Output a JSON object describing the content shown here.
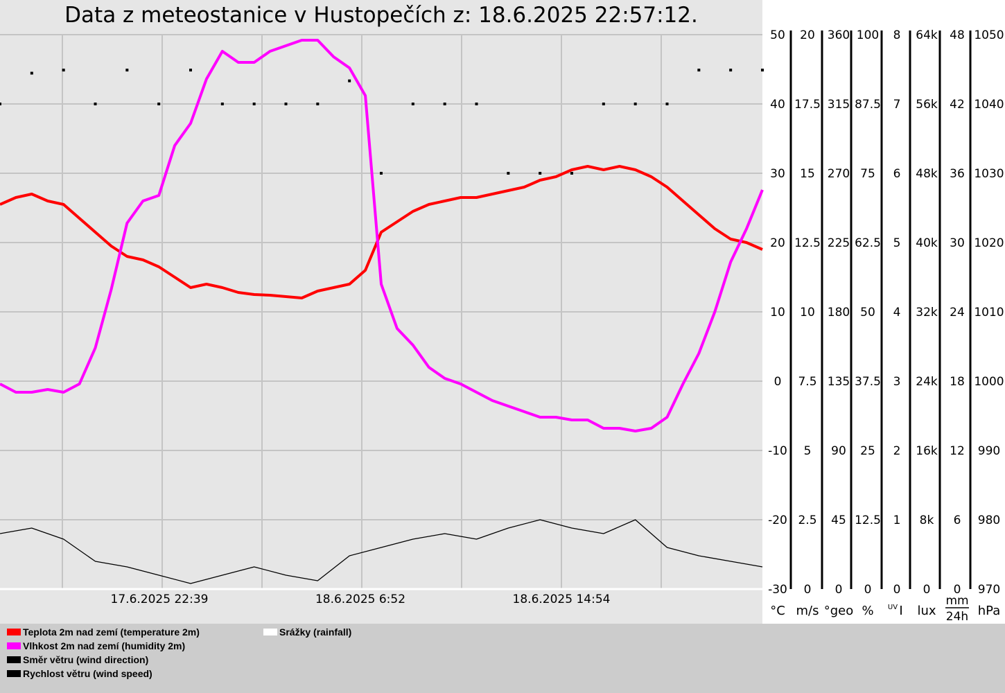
{
  "title": "Data z meteostanice v Hustopečích z: 18.6.2025 22:57:12.",
  "chart_data": {
    "type": "line",
    "time_labels": [
      "17.6.2025 22:39",
      "18.6.2025 6:52",
      "18.6.2025 14:54"
    ],
    "axes": [
      {
        "id": "temp",
        "unit": "°C",
        "ticks": [
          "50",
          "40",
          "30",
          "20",
          "10",
          "0",
          "-10",
          "-20",
          "-30"
        ]
      },
      {
        "id": "wind-speed",
        "unit": "m/s",
        "ticks": [
          "20",
          "17.5",
          "15",
          "12.5",
          "10",
          "7.5",
          "5",
          "2.5",
          "0"
        ]
      },
      {
        "id": "wind-dir",
        "unit": "°geo",
        "ticks": [
          "360",
          "315",
          "270",
          "225",
          "180",
          "135",
          "90",
          "45",
          "0"
        ]
      },
      {
        "id": "humidity",
        "unit": "%",
        "ticks": [
          "100",
          "87.5",
          "75",
          "62.5",
          "50",
          "37.5",
          "25",
          "12.5",
          "0"
        ]
      },
      {
        "id": "uv",
        "unit": "UVI",
        "unit_sup": "UV",
        "unit_main": "I",
        "ticks": [
          "8",
          "7",
          "6",
          "5",
          "4",
          "3",
          "2",
          "1",
          "0"
        ]
      },
      {
        "id": "lux",
        "unit": "lux",
        "ticks": [
          "64k",
          "56k",
          "48k",
          "40k",
          "32k",
          "24k",
          "16k",
          "8k",
          "0"
        ]
      },
      {
        "id": "rain",
        "unit": "mm/24h",
        "unit_top": "mm",
        "unit_bottom": "24h",
        "ticks": [
          "48",
          "42",
          "36",
          "30",
          "24",
          "18",
          "12",
          "6",
          "0"
        ]
      },
      {
        "id": "pressure",
        "unit": "hPa",
        "ticks": [
          "1050",
          "1040",
          "1030",
          "1020",
          "1010",
          "1000",
          "990",
          "980",
          "970"
        ]
      }
    ],
    "series": [
      {
        "name": "Teplota 2m nad zemí (temperature 2m)",
        "axis": "temp",
        "color": "#ff0000",
        "x": [
          0,
          0.5,
          1,
          1.5,
          2,
          2.5,
          3,
          3.5,
          4,
          4.5,
          5,
          5.5,
          6,
          6.5,
          7,
          7.5,
          8,
          8.5,
          9,
          9.5,
          10,
          10.5,
          11,
          11.5,
          12,
          12.5,
          13,
          13.5,
          14,
          14.5,
          15,
          15.5,
          16,
          16.5,
          17,
          17.5,
          18,
          18.5,
          19,
          19.5,
          20,
          20.5,
          21,
          21.5,
          22,
          22.5,
          23,
          23.5,
          24
        ],
        "y": [
          25.5,
          26.5,
          27,
          26,
          25.5,
          23.5,
          21.5,
          19.5,
          18,
          17.5,
          16.5,
          15,
          13.5,
          14,
          13.5,
          12.8,
          12.5,
          12.4,
          12.2,
          12,
          13,
          13.5,
          14,
          16,
          21.5,
          23,
          24.5,
          25.5,
          26,
          26.5,
          26.5,
          27,
          27.5,
          28,
          29,
          29.5,
          30.5,
          31,
          30.5,
          31,
          30.5,
          29.5,
          28,
          26,
          24,
          22,
          20.5,
          20,
          19
        ]
      },
      {
        "name": "Vlhkost 2m nad zemí (humidity 2m)",
        "axis": "humidity",
        "color": "#ff00ff",
        "x": [
          0,
          0.5,
          1,
          1.5,
          2,
          2.5,
          3,
          3.5,
          4,
          4.5,
          5,
          5.5,
          6,
          6.5,
          7,
          7.5,
          8,
          8.5,
          9,
          9.5,
          10,
          10.5,
          11,
          11.5,
          12,
          12.5,
          13,
          13.5,
          14,
          14.5,
          15,
          15.5,
          16,
          16.5,
          17,
          17.5,
          18,
          18.5,
          19,
          19.5,
          20,
          20.5,
          21,
          21.5,
          22,
          22.5,
          23,
          23.5,
          24
        ],
        "y": [
          37,
          35.5,
          35.5,
          36,
          35.5,
          37,
          43.5,
          54,
          66,
          70,
          71,
          80,
          84,
          92,
          97,
          95,
          95,
          97,
          98,
          99,
          99,
          96,
          94,
          89,
          55,
          47,
          44,
          40,
          38,
          37,
          35.5,
          34,
          33,
          32,
          31,
          31,
          30.5,
          30.5,
          29,
          29,
          28.5,
          29,
          31,
          37,
          42.5,
          50,
          59,
          65,
          72
        ]
      },
      {
        "name": "Směr větru (wind direction)",
        "axis": "wind-dir",
        "color": "#000000",
        "x": [
          0,
          1,
          2,
          3,
          4,
          5,
          6,
          7,
          8,
          9,
          10,
          11,
          12,
          13,
          14,
          15,
          16,
          17,
          18,
          19,
          20,
          21,
          22,
          23,
          24
        ],
        "y": [
          315,
          335,
          337,
          315,
          337,
          315,
          337,
          315,
          315,
          315,
          315,
          330,
          270,
          315,
          315,
          315,
          270,
          270,
          270,
          315,
          315,
          315,
          337,
          337,
          337
        ]
      },
      {
        "name": "Rychlost větru (wind speed)",
        "axis": "wind-speed",
        "color": "#000000",
        "x": [
          0,
          1,
          2,
          3,
          4,
          5,
          6,
          7,
          8,
          9,
          10,
          11,
          12,
          13,
          14,
          15,
          16,
          17,
          18,
          19,
          20,
          21,
          22,
          23,
          24
        ],
        "y": [
          2,
          2.2,
          1.8,
          1,
          0.8,
          0.5,
          0.2,
          0.5,
          0.8,
          0.5,
          0.3,
          1.2,
          1.5,
          1.8,
          2,
          1.8,
          2.2,
          2.5,
          2.2,
          2,
          2.5,
          1.5,
          1.2,
          1,
          0.8
        ]
      },
      {
        "name": "Srážky (rainfall)",
        "axis": "rain",
        "color": "#ffffff",
        "x": [
          0,
          24
        ],
        "y": [
          0,
          0
        ]
      }
    ],
    "xlim": [
      0,
      24
    ],
    "grid": true,
    "legend_position": "bottom-left"
  }
}
